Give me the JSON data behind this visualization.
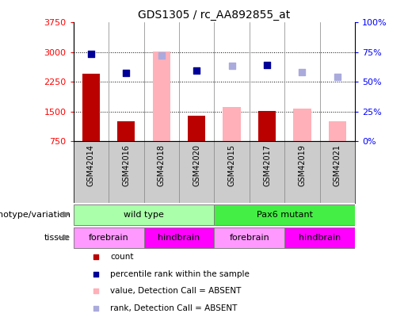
{
  "title": "GDS1305 / rc_AA892855_at",
  "samples": [
    "GSM42014",
    "GSM42016",
    "GSM42018",
    "GSM42020",
    "GSM42015",
    "GSM42017",
    "GSM42019",
    "GSM42021"
  ],
  "ylim_left": [
    750,
    3750
  ],
  "ylim_right": [
    0,
    100
  ],
  "yticks_left": [
    750,
    1500,
    2250,
    3000,
    3750
  ],
  "yticks_right": [
    0,
    25,
    50,
    75,
    100
  ],
  "bars": {
    "GSM42014": {
      "type": "dark_red",
      "value": 2450
    },
    "GSM42016": {
      "type": "dark_red",
      "value": 1250
    },
    "GSM42018": {
      "type": "pink",
      "value": 3010
    },
    "GSM42020": {
      "type": "dark_red",
      "value": 1390
    },
    "GSM42015": {
      "type": "pink",
      "value": 1620
    },
    "GSM42017": {
      "type": "dark_red",
      "value": 1510
    },
    "GSM42019": {
      "type": "pink",
      "value": 1570
    },
    "GSM42021": {
      "type": "pink",
      "value": 1250
    }
  },
  "squares": {
    "GSM42014": {
      "type": "blue",
      "rank": 73.5
    },
    "GSM42016": {
      "type": "blue",
      "rank": 57.5
    },
    "GSM42018": {
      "type": "light_blue",
      "rank": 72.5
    },
    "GSM42020": {
      "type": "blue",
      "rank": 59.5
    },
    "GSM42015": {
      "type": "light_blue",
      "rank": 63.5
    },
    "GSM42017": {
      "type": "blue",
      "rank": 64.0
    },
    "GSM42019": {
      "type": "light_blue",
      "rank": 58.5
    },
    "GSM42021": {
      "type": "light_blue",
      "rank": 54.0
    }
  },
  "color_dark_red": "#BB0000",
  "color_pink": "#FFB0B8",
  "color_blue": "#000099",
  "color_light_blue": "#AAAADD",
  "color_green_light": "#AAFFAA",
  "color_green_bright": "#44EE44",
  "color_magenta_light": "#FF99FF",
  "color_magenta_bright": "#FF00FF",
  "color_gray_bg": "#CCCCCC",
  "genotype_groups": [
    {
      "label": "wild type",
      "start": 0,
      "end": 4,
      "color": "#AAFFAA"
    },
    {
      "label": "Pax6 mutant",
      "start": 4,
      "end": 8,
      "color": "#44EE44"
    }
  ],
  "tissue_groups": [
    {
      "label": "forebrain",
      "start": 0,
      "end": 2,
      "color": "#FF99FF"
    },
    {
      "label": "hindbrain",
      "start": 2,
      "end": 4,
      "color": "#FF00FF"
    },
    {
      "label": "forebrain",
      "start": 4,
      "end": 6,
      "color": "#FF99FF"
    },
    {
      "label": "hindbrain",
      "start": 6,
      "end": 8,
      "color": "#FF00FF"
    }
  ],
  "legend_items": [
    {
      "label": "count",
      "color": "#BB0000"
    },
    {
      "label": "percentile rank within the sample",
      "color": "#000099"
    },
    {
      "label": "value, Detection Call = ABSENT",
      "color": "#FFB0B8"
    },
    {
      "label": "rank, Detection Call = ABSENT",
      "color": "#AAAADD"
    }
  ]
}
